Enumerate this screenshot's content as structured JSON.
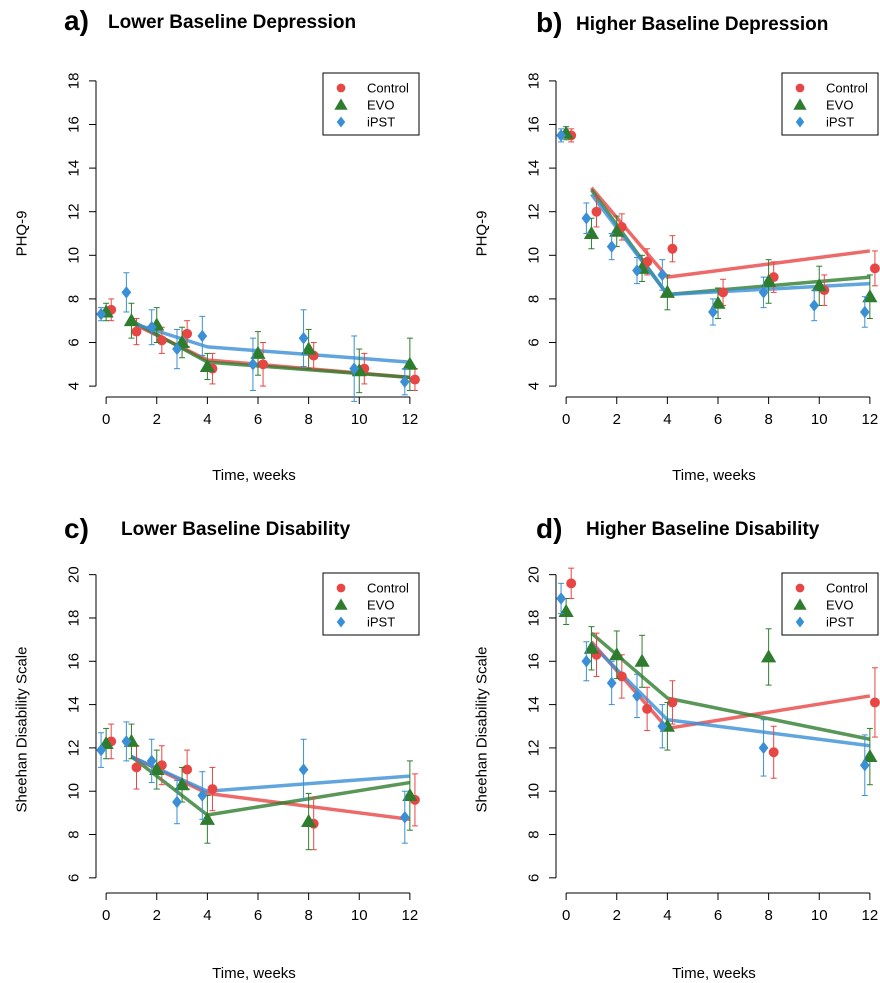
{
  "chart_data": [
    {
      "type": "scatter",
      "panel_letter": "a)",
      "title": "Lower Baseline Depression",
      "xlabel": "Time, weeks",
      "ylabel": "PHQ-9",
      "xlim": [
        -0.4,
        12.4
      ],
      "ylim": [
        3.5,
        18.5
      ],
      "xticks": [
        0,
        2,
        4,
        6,
        8,
        10,
        12
      ],
      "yticks": [
        4,
        6,
        8,
        10,
        12,
        14,
        16,
        18
      ],
      "legend": {
        "position": "top-right",
        "entries": [
          "Control",
          "EVO",
          "iPST"
        ]
      },
      "series": [
        {
          "name": "Control",
          "color": "#e84545",
          "marker": "circle",
          "points": [
            [
              0.2,
              7.5
            ],
            [
              1.2,
              6.5
            ],
            [
              2.2,
              6.1
            ],
            [
              3.2,
              6.4
            ],
            [
              4.2,
              4.8
            ],
            [
              6.2,
              5.0
            ],
            [
              8.2,
              5.4
            ],
            [
              10.2,
              4.8
            ],
            [
              12.2,
              4.3
            ]
          ],
          "errors": [
            0.5,
            0.6,
            0.6,
            0.6,
            0.7,
            1.0,
            0.6,
            0.7,
            0.5
          ],
          "fit": [
            [
              1,
              6.9
            ],
            [
              4,
              5.2
            ],
            [
              12,
              4.4
            ]
          ]
        },
        {
          "name": "EVO",
          "color": "#2e7d2e",
          "marker": "triangle",
          "points": [
            [
              0,
              7.4
            ],
            [
              1,
              7.0
            ],
            [
              2,
              6.8
            ],
            [
              3,
              6.0
            ],
            [
              4,
              4.9
            ],
            [
              6,
              5.5
            ],
            [
              8,
              5.7
            ],
            [
              10,
              4.7
            ],
            [
              12,
              5.0
            ]
          ],
          "errors": [
            0.4,
            0.8,
            0.8,
            0.7,
            0.6,
            1.0,
            0.9,
            1.0,
            1.2
          ],
          "fit": [
            [
              1,
              7.0
            ],
            [
              4,
              5.1
            ],
            [
              12,
              4.4
            ]
          ]
        },
        {
          "name": "iPST",
          "color": "#3a8fd6",
          "marker": "diamond",
          "points": [
            [
              -0.2,
              7.3
            ],
            [
              0.8,
              8.3
            ],
            [
              1.8,
              6.7
            ],
            [
              2.8,
              5.7
            ],
            [
              3.8,
              6.3
            ],
            [
              5.8,
              5.0
            ],
            [
              7.8,
              6.2
            ],
            [
              9.8,
              4.8
            ],
            [
              11.8,
              4.2
            ]
          ],
          "errors": [
            0.3,
            0.9,
            0.8,
            0.9,
            0.9,
            1.2,
            1.3,
            1.5,
            0.6
          ],
          "fit": [
            [
              1,
              6.9
            ],
            [
              4,
              5.8
            ],
            [
              12,
              5.1
            ]
          ]
        }
      ]
    },
    {
      "type": "scatter",
      "panel_letter": "b)",
      "title": "Higher Baseline Depression",
      "xlabel": "Time, weeks",
      "ylabel": "PHQ-9",
      "xlim": [
        -0.4,
        12.4
      ],
      "ylim": [
        3.5,
        18.5
      ],
      "xticks": [
        0,
        2,
        4,
        6,
        8,
        10,
        12
      ],
      "yticks": [
        4,
        6,
        8,
        10,
        12,
        14,
        16,
        18
      ],
      "legend": {
        "position": "top-right",
        "entries": [
          "Control",
          "EVO",
          "iPST"
        ]
      },
      "series": [
        {
          "name": "Control",
          "color": "#e84545",
          "marker": "circle",
          "points": [
            [
              0.2,
              15.5
            ],
            [
              1.2,
              12.0
            ],
            [
              2.2,
              11.3
            ],
            [
              3.2,
              9.7
            ],
            [
              4.2,
              10.3
            ],
            [
              6.2,
              8.3
            ],
            [
              8.2,
              9.0
            ],
            [
              10.2,
              8.4
            ],
            [
              12.2,
              9.4
            ]
          ],
          "errors": [
            0.3,
            0.7,
            0.6,
            0.6,
            0.6,
            0.6,
            0.7,
            0.7,
            0.8
          ],
          "fit": [
            [
              1,
              13.1
            ],
            [
              4,
              9.0
            ],
            [
              12,
              10.2
            ]
          ]
        },
        {
          "name": "EVO",
          "color": "#2e7d2e",
          "marker": "triangle",
          "points": [
            [
              0,
              15.6
            ],
            [
              1,
              11.0
            ],
            [
              2,
              11.1
            ],
            [
              3,
              9.4
            ],
            [
              4,
              8.3
            ],
            [
              6,
              7.8
            ],
            [
              8,
              8.8
            ],
            [
              10,
              8.6
            ],
            [
              12,
              8.1
            ]
          ],
          "errors": [
            0.3,
            0.7,
            0.7,
            0.6,
            0.8,
            0.7,
            1.0,
            0.9,
            1.0
          ],
          "fit": [
            [
              1,
              13.0
            ],
            [
              4,
              8.2
            ],
            [
              12,
              9.0
            ]
          ]
        },
        {
          "name": "iPST",
          "color": "#3a8fd6",
          "marker": "diamond",
          "points": [
            [
              -0.2,
              15.5
            ],
            [
              0.8,
              11.7
            ],
            [
              1.8,
              10.4
            ],
            [
              2.8,
              9.3
            ],
            [
              3.8,
              9.1
            ],
            [
              5.8,
              7.4
            ],
            [
              7.8,
              8.3
            ],
            [
              9.8,
              7.7
            ],
            [
              11.8,
              7.4
            ]
          ],
          "errors": [
            0.3,
            0.7,
            0.6,
            0.6,
            0.7,
            0.6,
            0.7,
            0.7,
            0.7
          ],
          "fit": [
            [
              1,
              12.8
            ],
            [
              4,
              8.2
            ],
            [
              12,
              8.7
            ]
          ]
        }
      ]
    },
    {
      "type": "scatter",
      "panel_letter": "c)",
      "title": "Lower Baseline Disability",
      "xlabel": "Time, weeks",
      "ylabel": "Sheehan Disability Scale",
      "xlim": [
        -0.4,
        12.4
      ],
      "ylim": [
        5.3,
        20.4
      ],
      "xticks": [
        0,
        2,
        4,
        6,
        8,
        10,
        12
      ],
      "yticks": [
        6,
        8,
        10,
        12,
        14,
        16,
        18,
        20
      ],
      "legend": {
        "position": "top-right",
        "entries": [
          "Control",
          "EVO",
          "iPST"
        ]
      },
      "series": [
        {
          "name": "Control",
          "color": "#e84545",
          "marker": "circle",
          "points": [
            [
              0.2,
              12.3
            ],
            [
              1.2,
              11.1
            ],
            [
              2.2,
              11.2
            ],
            [
              3.2,
              11.0
            ],
            [
              4.2,
              10.1
            ],
            [
              8.2,
              8.5
            ],
            [
              12.2,
              9.6
            ]
          ],
          "errors": [
            0.8,
            1.0,
            0.9,
            0.9,
            1.0,
            1.2,
            1.2
          ],
          "fit": [
            [
              1,
              11.6
            ],
            [
              4,
              9.9
            ],
            [
              12,
              8.7
            ]
          ]
        },
        {
          "name": "EVO",
          "color": "#2e7d2e",
          "marker": "triangle",
          "points": [
            [
              0,
              12.2
            ],
            [
              1,
              12.3
            ],
            [
              2,
              11.0
            ],
            [
              3,
              10.3
            ],
            [
              4,
              8.7
            ],
            [
              8,
              8.6
            ],
            [
              12,
              9.8
            ]
          ],
          "errors": [
            0.7,
            0.8,
            0.9,
            0.8,
            1.1,
            1.3,
            1.6
          ],
          "fit": [
            [
              1,
              11.6
            ],
            [
              4,
              8.9
            ],
            [
              12,
              10.4
            ]
          ]
        },
        {
          "name": "iPST",
          "color": "#3a8fd6",
          "marker": "diamond",
          "points": [
            [
              -0.2,
              11.9
            ],
            [
              0.8,
              12.3
            ],
            [
              1.8,
              11.4
            ],
            [
              2.8,
              9.5
            ],
            [
              3.8,
              9.8
            ],
            [
              7.8,
              11.0
            ],
            [
              11.8,
              8.8
            ]
          ],
          "errors": [
            0.8,
            0.9,
            1.0,
            1.0,
            1.1,
            1.4,
            1.2
          ],
          "fit": [
            [
              1,
              11.6
            ],
            [
              4,
              10.0
            ],
            [
              12,
              10.7
            ]
          ]
        }
      ]
    },
    {
      "type": "scatter",
      "panel_letter": "d)",
      "title": "Higher Baseline Disability",
      "xlabel": "Time, weeks",
      "ylabel": "Sheehan Disability Scale",
      "xlim": [
        -0.4,
        12.4
      ],
      "ylim": [
        5.3,
        20.4
      ],
      "xticks": [
        0,
        2,
        4,
        6,
        8,
        10,
        12
      ],
      "yticks": [
        6,
        8,
        10,
        12,
        14,
        16,
        18,
        20
      ],
      "legend": {
        "position": "top-right",
        "entries": [
          "Control",
          "EVO",
          "iPST"
        ]
      },
      "series": [
        {
          "name": "Control",
          "color": "#e84545",
          "marker": "circle",
          "points": [
            [
              0.2,
              19.6
            ],
            [
              1.2,
              16.3
            ],
            [
              2.2,
              15.3
            ],
            [
              3.2,
              13.8
            ],
            [
              4.2,
              14.1
            ],
            [
              8.2,
              11.8
            ],
            [
              12.2,
              14.1
            ]
          ],
          "errors": [
            0.7,
            1.0,
            1.0,
            1.0,
            1.0,
            1.2,
            1.6
          ],
          "fit": [
            [
              1,
              16.9
            ],
            [
              4,
              12.9
            ],
            [
              12,
              14.4
            ]
          ]
        },
        {
          "name": "EVO",
          "color": "#2e7d2e",
          "marker": "triangle",
          "points": [
            [
              0,
              18.3
            ],
            [
              1,
              16.6
            ],
            [
              2,
              16.3
            ],
            [
              3,
              16.0
            ],
            [
              4,
              13.0
            ],
            [
              8,
              16.2
            ],
            [
              12,
              11.6
            ]
          ],
          "errors": [
            0.6,
            1.0,
            1.1,
            1.2,
            1.1,
            1.3,
            1.3
          ],
          "fit": [
            [
              1,
              17.3
            ],
            [
              4,
              14.3
            ],
            [
              12,
              12.4
            ]
          ]
        },
        {
          "name": "iPST",
          "color": "#3a8fd6",
          "marker": "diamond",
          "points": [
            [
              -0.2,
              18.9
            ],
            [
              0.8,
              16.0
            ],
            [
              1.8,
              15.0
            ],
            [
              2.8,
              14.4
            ],
            [
              3.8,
              13.0
            ],
            [
              7.8,
              12.0
            ],
            [
              11.8,
              11.2
            ]
          ],
          "errors": [
            0.7,
            0.9,
            1.0,
            1.0,
            1.0,
            1.3,
            1.4
          ],
          "fit": [
            [
              1,
              16.8
            ],
            [
              4,
              13.3
            ],
            [
              12,
              12.1
            ]
          ]
        }
      ]
    }
  ]
}
